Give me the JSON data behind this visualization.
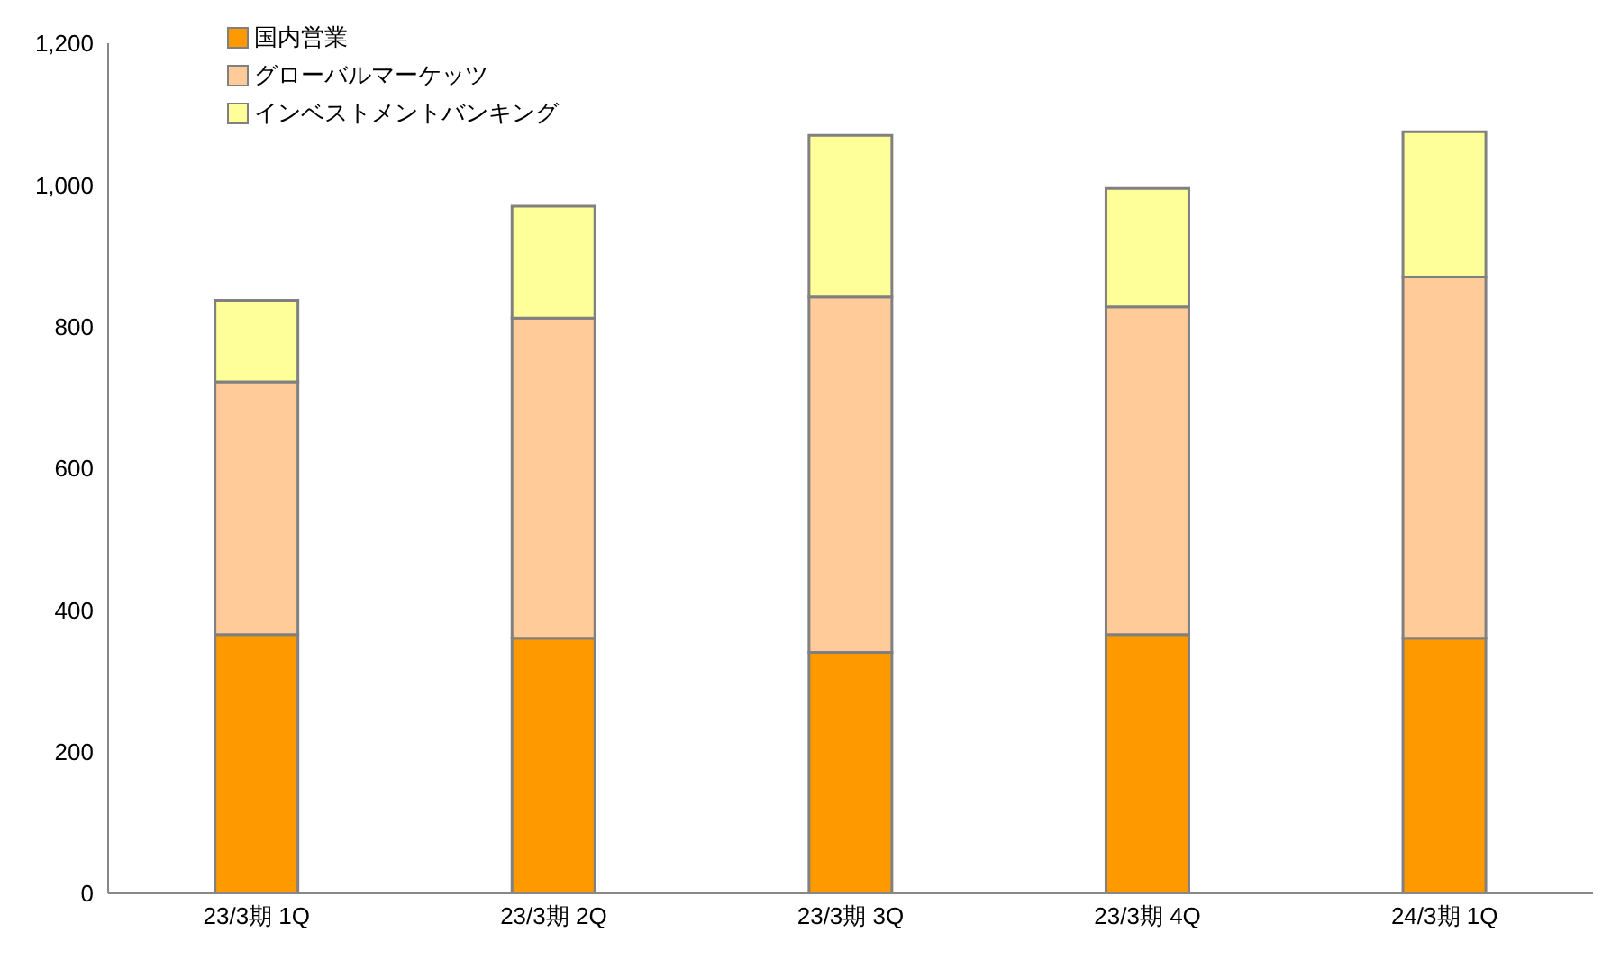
{
  "chart_data": {
    "type": "bar",
    "stacked": true,
    "categories": [
      "23/3期 1Q",
      "23/3期 2Q",
      "23/3期 3Q",
      "23/3期 4Q",
      "24/3期 1Q"
    ],
    "series": [
      {
        "name": "国内営業",
        "color": "#ff9900",
        "values": [
          365,
          360,
          340,
          365,
          360
        ]
      },
      {
        "name": "グローバルマーケッツ",
        "color": "#ffcc99",
        "values": [
          357,
          452,
          502,
          463,
          510
        ]
      },
      {
        "name": "インベストメントバンキング",
        "color": "#ffff99",
        "values": [
          115,
          158,
          228,
          167,
          205
        ]
      }
    ],
    "ylim": [
      0,
      1200
    ],
    "yticks": [
      0,
      {
        "value": 200,
        "label": "200"
      },
      {
        "value": 400,
        "label": "400"
      },
      {
        "value": 600,
        "label": "600"
      },
      {
        "value": 800,
        "label": "800"
      },
      {
        "value": 1000,
        "label": "1,000"
      },
      {
        "value": 1200,
        "label": "1,200"
      }
    ],
    "grid": false,
    "legend": "top left"
  }
}
